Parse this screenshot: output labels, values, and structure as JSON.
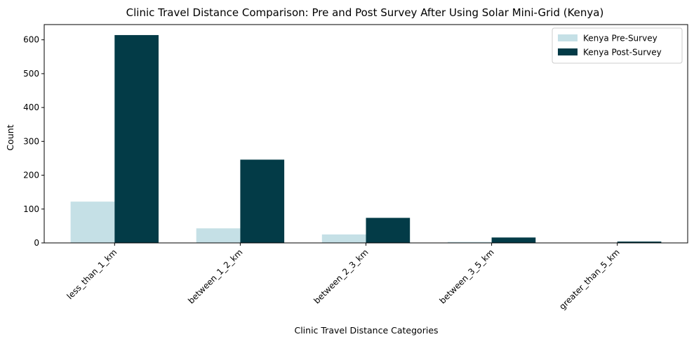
{
  "chart_data": {
    "type": "bar",
    "title": "Clinic Travel Distance Comparison: Pre and Post Survey After Using Solar Mini-Grid (Kenya)",
    "xlabel": "Clinic Travel Distance Categories",
    "ylabel": "Count",
    "categories": [
      "less_than_1_km",
      "between_1_2_km",
      "between_2_3_km",
      "between_3_5_km",
      "greater_than_5_km"
    ],
    "series": [
      {
        "name": "Kenya Pre-Survey",
        "color": "#c5e0e6",
        "values": [
          122,
          43,
          25,
          3,
          1
        ]
      },
      {
        "name": "Kenya Post-Survey",
        "color": "#033b47",
        "values": [
          614,
          246,
          74,
          16,
          4
        ]
      }
    ],
    "ylim": [
      0,
      645
    ],
    "yticks": [
      0,
      100,
      200,
      300,
      400,
      500,
      600
    ],
    "grid": false,
    "legend_position": "top-right"
  }
}
